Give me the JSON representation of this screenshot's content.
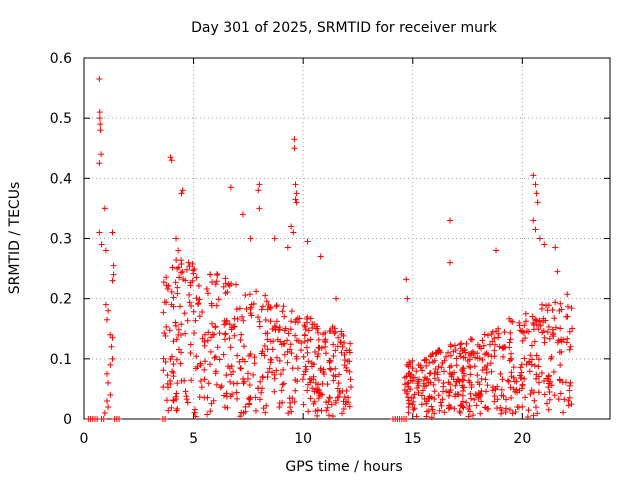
{
  "chart_data": {
    "type": "scatter",
    "title": "Day 301 of 2025, SRMTID for receiver murk",
    "xlabel": "GPS time / hours",
    "ylabel": "SRMTID / TECUs",
    "xlim": [
      0,
      24
    ],
    "ylim": [
      0,
      0.6
    ],
    "xticks": [
      0,
      5,
      10,
      15,
      20
    ],
    "xtick_labels": [
      "0",
      "5",
      "10",
      "15",
      "20"
    ],
    "yticks": [
      0,
      0.1,
      0.2,
      0.3,
      0.4,
      0.5,
      0.6
    ],
    "ytick_labels": [
      "0",
      "0.1",
      "0.2",
      "0.3",
      "0.4",
      "0.5",
      "0.6"
    ],
    "grid": true,
    "marker": "+",
    "color": "#ff0000",
    "series": [
      {
        "name": "SRMTID",
        "points": [
          [
            0.7,
            0.565
          ],
          [
            0.72,
            0.51
          ],
          [
            0.72,
            0.5
          ],
          [
            0.74,
            0.49
          ],
          [
            0.75,
            0.48
          ],
          [
            0.78,
            0.44
          ],
          [
            0.7,
            0.425
          ],
          [
            0.7,
            0.31
          ],
          [
            0.8,
            0.29
          ],
          [
            0.95,
            0.35
          ],
          [
            1.0,
            0.28
          ],
          [
            1.3,
            0.31
          ],
          [
            1.35,
            0.255
          ],
          [
            1.35,
            0.24
          ],
          [
            1.3,
            0.23
          ],
          [
            1.0,
            0.19
          ],
          [
            1.1,
            0.18
          ],
          [
            1.05,
            0.165
          ],
          [
            1.2,
            0.14
          ],
          [
            1.3,
            0.135
          ],
          [
            1.25,
            0.12
          ],
          [
            1.3,
            0.1
          ],
          [
            1.2,
            0.09
          ],
          [
            1.05,
            0.075
          ],
          [
            1.1,
            0.06
          ],
          [
            1.2,
            0.04
          ],
          [
            1.05,
            0.03
          ],
          [
            1.1,
            0.02
          ],
          [
            0.95,
            0.01
          ],
          [
            3.95,
            0.435
          ],
          [
            4.0,
            0.43
          ],
          [
            4.5,
            0.38
          ],
          [
            4.45,
            0.375
          ],
          [
            6.7,
            0.385
          ],
          [
            8.0,
            0.39
          ],
          [
            7.95,
            0.38
          ],
          [
            8.0,
            0.35
          ],
          [
            7.25,
            0.34
          ],
          [
            9.6,
            0.465
          ],
          [
            9.6,
            0.45
          ],
          [
            9.65,
            0.39
          ],
          [
            9.7,
            0.375
          ],
          [
            9.65,
            0.365
          ],
          [
            9.7,
            0.36
          ],
          [
            9.45,
            0.32
          ],
          [
            9.55,
            0.31
          ],
          [
            10.2,
            0.295
          ],
          [
            9.3,
            0.285
          ],
          [
            4.2,
            0.3
          ],
          [
            4.3,
            0.28
          ],
          [
            7.6,
            0.3
          ],
          [
            8.7,
            0.3
          ],
          [
            10.8,
            0.27
          ],
          [
            11.5,
            0.2
          ],
          [
            14.7,
            0.232
          ],
          [
            14.75,
            0.2
          ],
          [
            16.7,
            0.33
          ],
          [
            16.7,
            0.26
          ],
          [
            18.8,
            0.28
          ],
          [
            20.5,
            0.405
          ],
          [
            20.6,
            0.39
          ],
          [
            20.65,
            0.375
          ],
          [
            20.7,
            0.36
          ],
          [
            20.5,
            0.33
          ],
          [
            20.6,
            0.315
          ],
          [
            20.8,
            0.3
          ],
          [
            21.0,
            0.29
          ],
          [
            21.5,
            0.285
          ],
          [
            21.6,
            0.245
          ],
          [
            22.0,
            0.17
          ],
          [
            22.2,
            0.12
          ],
          [
            22.2,
            0.06
          ],
          [
            22.1,
            0.03
          ]
        ],
        "dense_regions": [
          {
            "x_range": [
              3.6,
              12.2
            ],
            "y_range": [
              0.0,
              0.3
            ],
            "count": 520,
            "profile": "decay"
          },
          {
            "x_range": [
              14.6,
              22.3
            ],
            "y_range": [
              0.0,
              0.21
            ],
            "count": 470,
            "profile": "rise"
          }
        ],
        "zero_points_x": [
          0.2,
          0.3,
          0.4,
          0.5,
          0.6,
          0.8,
          0.9,
          1.4,
          1.5,
          1.6,
          3.6,
          3.7,
          14.1,
          14.2,
          14.3,
          14.4,
          14.5,
          14.6,
          14.7
        ]
      }
    ]
  }
}
